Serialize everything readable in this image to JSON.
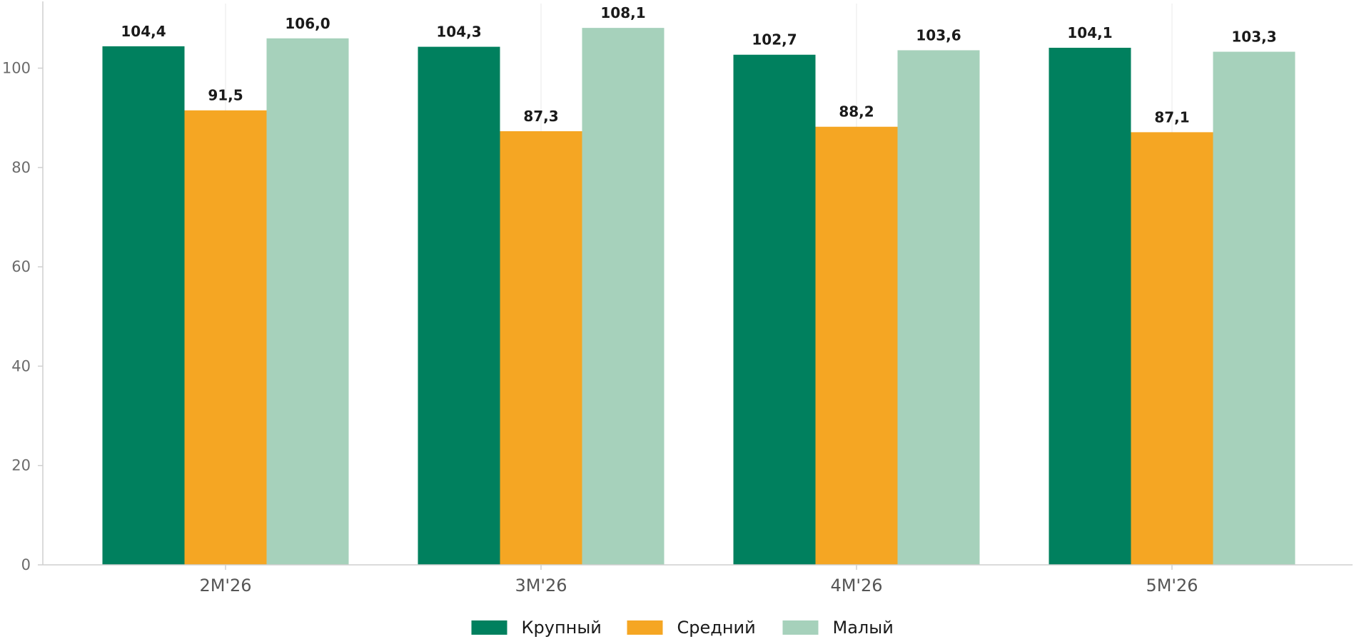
{
  "chart_data": {
    "type": "bar",
    "title": "",
    "xlabel": "",
    "ylabel": "",
    "categories": [
      "2M'26",
      "3M'26",
      "4M'26",
      "5M'26"
    ],
    "series": [
      {
        "name": "Крупный",
        "color": "#00805e",
        "values": [
          104.4,
          104.3,
          102.7,
          104.1
        ],
        "labels": [
          "104,4",
          "104,3",
          "102,7",
          "104,1"
        ]
      },
      {
        "name": "Средний",
        "color": "#f5a623",
        "values": [
          91.5,
          87.3,
          88.2,
          87.1
        ],
        "labels": [
          "91,5",
          "87,3",
          "88,2",
          "87,1"
        ]
      },
      {
        "name": "Малый",
        "color": "#a6d1bb",
        "values": [
          106.0,
          108.1,
          103.6,
          103.3
        ],
        "labels": [
          "106,0",
          "108,1",
          "103,6",
          "103,3"
        ]
      }
    ],
    "ylim": [
      0,
      113
    ],
    "yticks": [
      "0",
      "20",
      "40",
      "60",
      "80",
      "100"
    ],
    "grid": "vertical",
    "legend_position": "bottom-center"
  }
}
